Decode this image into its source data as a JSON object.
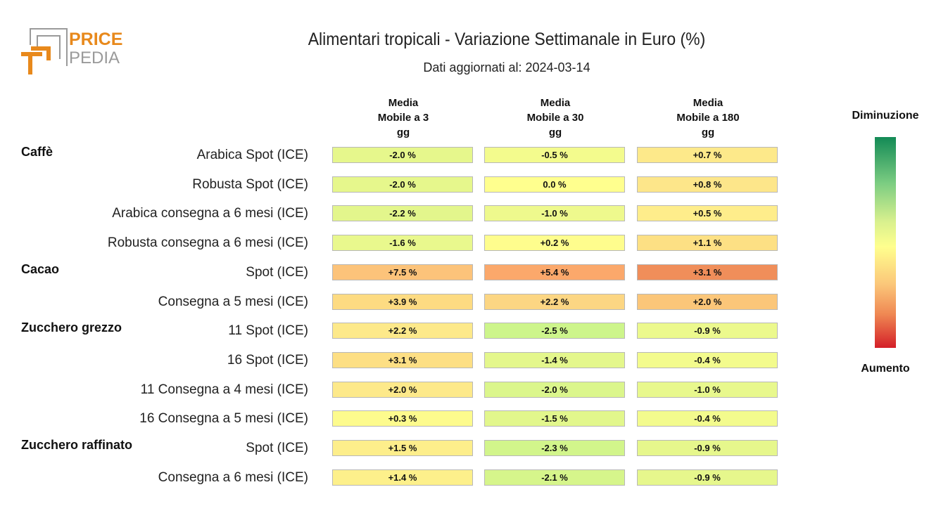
{
  "brand": {
    "line1": "PRICE",
    "line2": "PEDIA",
    "accent": "#e8891c",
    "gray": "#8f8f8f"
  },
  "chart_data": {
    "type": "table",
    "title": "Alimentari tropicali - Variazione Settimanale in Euro (%)",
    "subtitle": "Dati aggiornati al: 2024-03-14",
    "columns": [
      {
        "lines": [
          "Media",
          "Mobile a 3",
          "gg"
        ]
      },
      {
        "lines": [
          "Media",
          "Mobile a 30",
          "gg"
        ]
      },
      {
        "lines": [
          "Media",
          "Mobile a 180",
          "gg"
        ]
      }
    ],
    "groups": [
      {
        "name": "Caffè",
        "rows": [
          {
            "label": "Arabica Spot (ICE)",
            "values": [
              -2.0,
              -0.5,
              0.7
            ],
            "texts": [
              "-2.0 %",
              "-0.5 %",
              "+0.7 %"
            ]
          },
          {
            "label": "Robusta Spot (ICE)",
            "values": [
              -2.0,
              0.0,
              0.8
            ],
            "texts": [
              "-2.0 %",
              "0.0 %",
              "+0.8 %"
            ]
          },
          {
            "label": "Arabica consegna a 6 mesi (ICE)",
            "values": [
              -2.2,
              -1.0,
              0.5
            ],
            "texts": [
              "-2.2 %",
              "-1.0 %",
              "+0.5 %"
            ]
          },
          {
            "label": "Robusta consegna a 6 mesi (ICE)",
            "values": [
              -1.6,
              0.2,
              1.1
            ],
            "texts": [
              "-1.6 %",
              "+0.2 %",
              "+1.1 %"
            ]
          }
        ]
      },
      {
        "name": "Cacao",
        "rows": [
          {
            "label": "Spot (ICE)",
            "values": [
              7.5,
              5.4,
              3.1
            ],
            "texts": [
              "+7.5 %",
              "+5.4 %",
              "+3.1 %"
            ]
          },
          {
            "label": "Consegna a 5 mesi (ICE)",
            "values": [
              3.9,
              2.2,
              2.0
            ],
            "texts": [
              "+3.9 %",
              "+2.2 %",
              "+2.0 %"
            ]
          }
        ]
      },
      {
        "name": "Zucchero grezzo",
        "rows": [
          {
            "label": "11 Spot (ICE)",
            "values": [
              2.2,
              -2.5,
              -0.9
            ],
            "texts": [
              "+2.2 %",
              "-2.5 %",
              "-0.9 %"
            ]
          },
          {
            "label": "16 Spot (ICE)",
            "values": [
              3.1,
              -1.4,
              -0.4
            ],
            "texts": [
              "+3.1 %",
              "-1.4 %",
              "-0.4 %"
            ]
          },
          {
            "label": "11 Consegna a 4 mesi (ICE)",
            "values": [
              2.0,
              -2.0,
              -1.0
            ],
            "texts": [
              "+2.0 %",
              "-2.0 %",
              "-1.0 %"
            ]
          },
          {
            "label": "16 Consegna a 5 mesi (ICE)",
            "values": [
              0.3,
              -1.5,
              -0.4
            ],
            "texts": [
              "+0.3 %",
              "-1.5 %",
              "-0.4 %"
            ]
          }
        ]
      },
      {
        "name": "Zucchero raffinato",
        "rows": [
          {
            "label": "Spot (ICE)",
            "values": [
              1.5,
              -2.3,
              -0.9
            ],
            "texts": [
              "+1.5 %",
              "-2.3 %",
              "-0.9 %"
            ]
          },
          {
            "label": "Consegna a 6 mesi (ICE)",
            "values": [
              1.4,
              -2.1,
              -0.9
            ],
            "texts": [
              "+1.4 %",
              "-2.1 %",
              "-0.9 %"
            ]
          }
        ]
      }
    ],
    "legend": {
      "top": "Diminuzione",
      "bottom": "Aumento"
    },
    "cell_colors": [
      [
        "#e6f78c",
        "#f3fb8d",
        "#fde98a"
      ],
      [
        "#e6f78c",
        "#ffff8e",
        "#fde68a"
      ],
      [
        "#e3f68c",
        "#eef98d",
        "#feed8b"
      ],
      [
        "#e9f88d",
        "#fefd8d",
        "#fde084"
      ],
      [
        "#fcc37a",
        "#fba86b",
        "#f08e5a"
      ],
      [
        "#fddb82",
        "#fcd683",
        "#fbc679"
      ],
      [
        "#fde98a",
        "#cdf58b",
        "#ecf98d"
      ],
      [
        "#fddf84",
        "#e4f78c",
        "#f3fb8d"
      ],
      [
        "#fde98a",
        "#dbf68c",
        "#e8f88d"
      ],
      [
        "#fdfb8d",
        "#e2f78c",
        "#f3fb8d"
      ],
      [
        "#fdee8b",
        "#d2f58b",
        "#e6f78c"
      ],
      [
        "#fdf08b",
        "#d6f58b",
        "#e6f78c"
      ]
    ]
  }
}
